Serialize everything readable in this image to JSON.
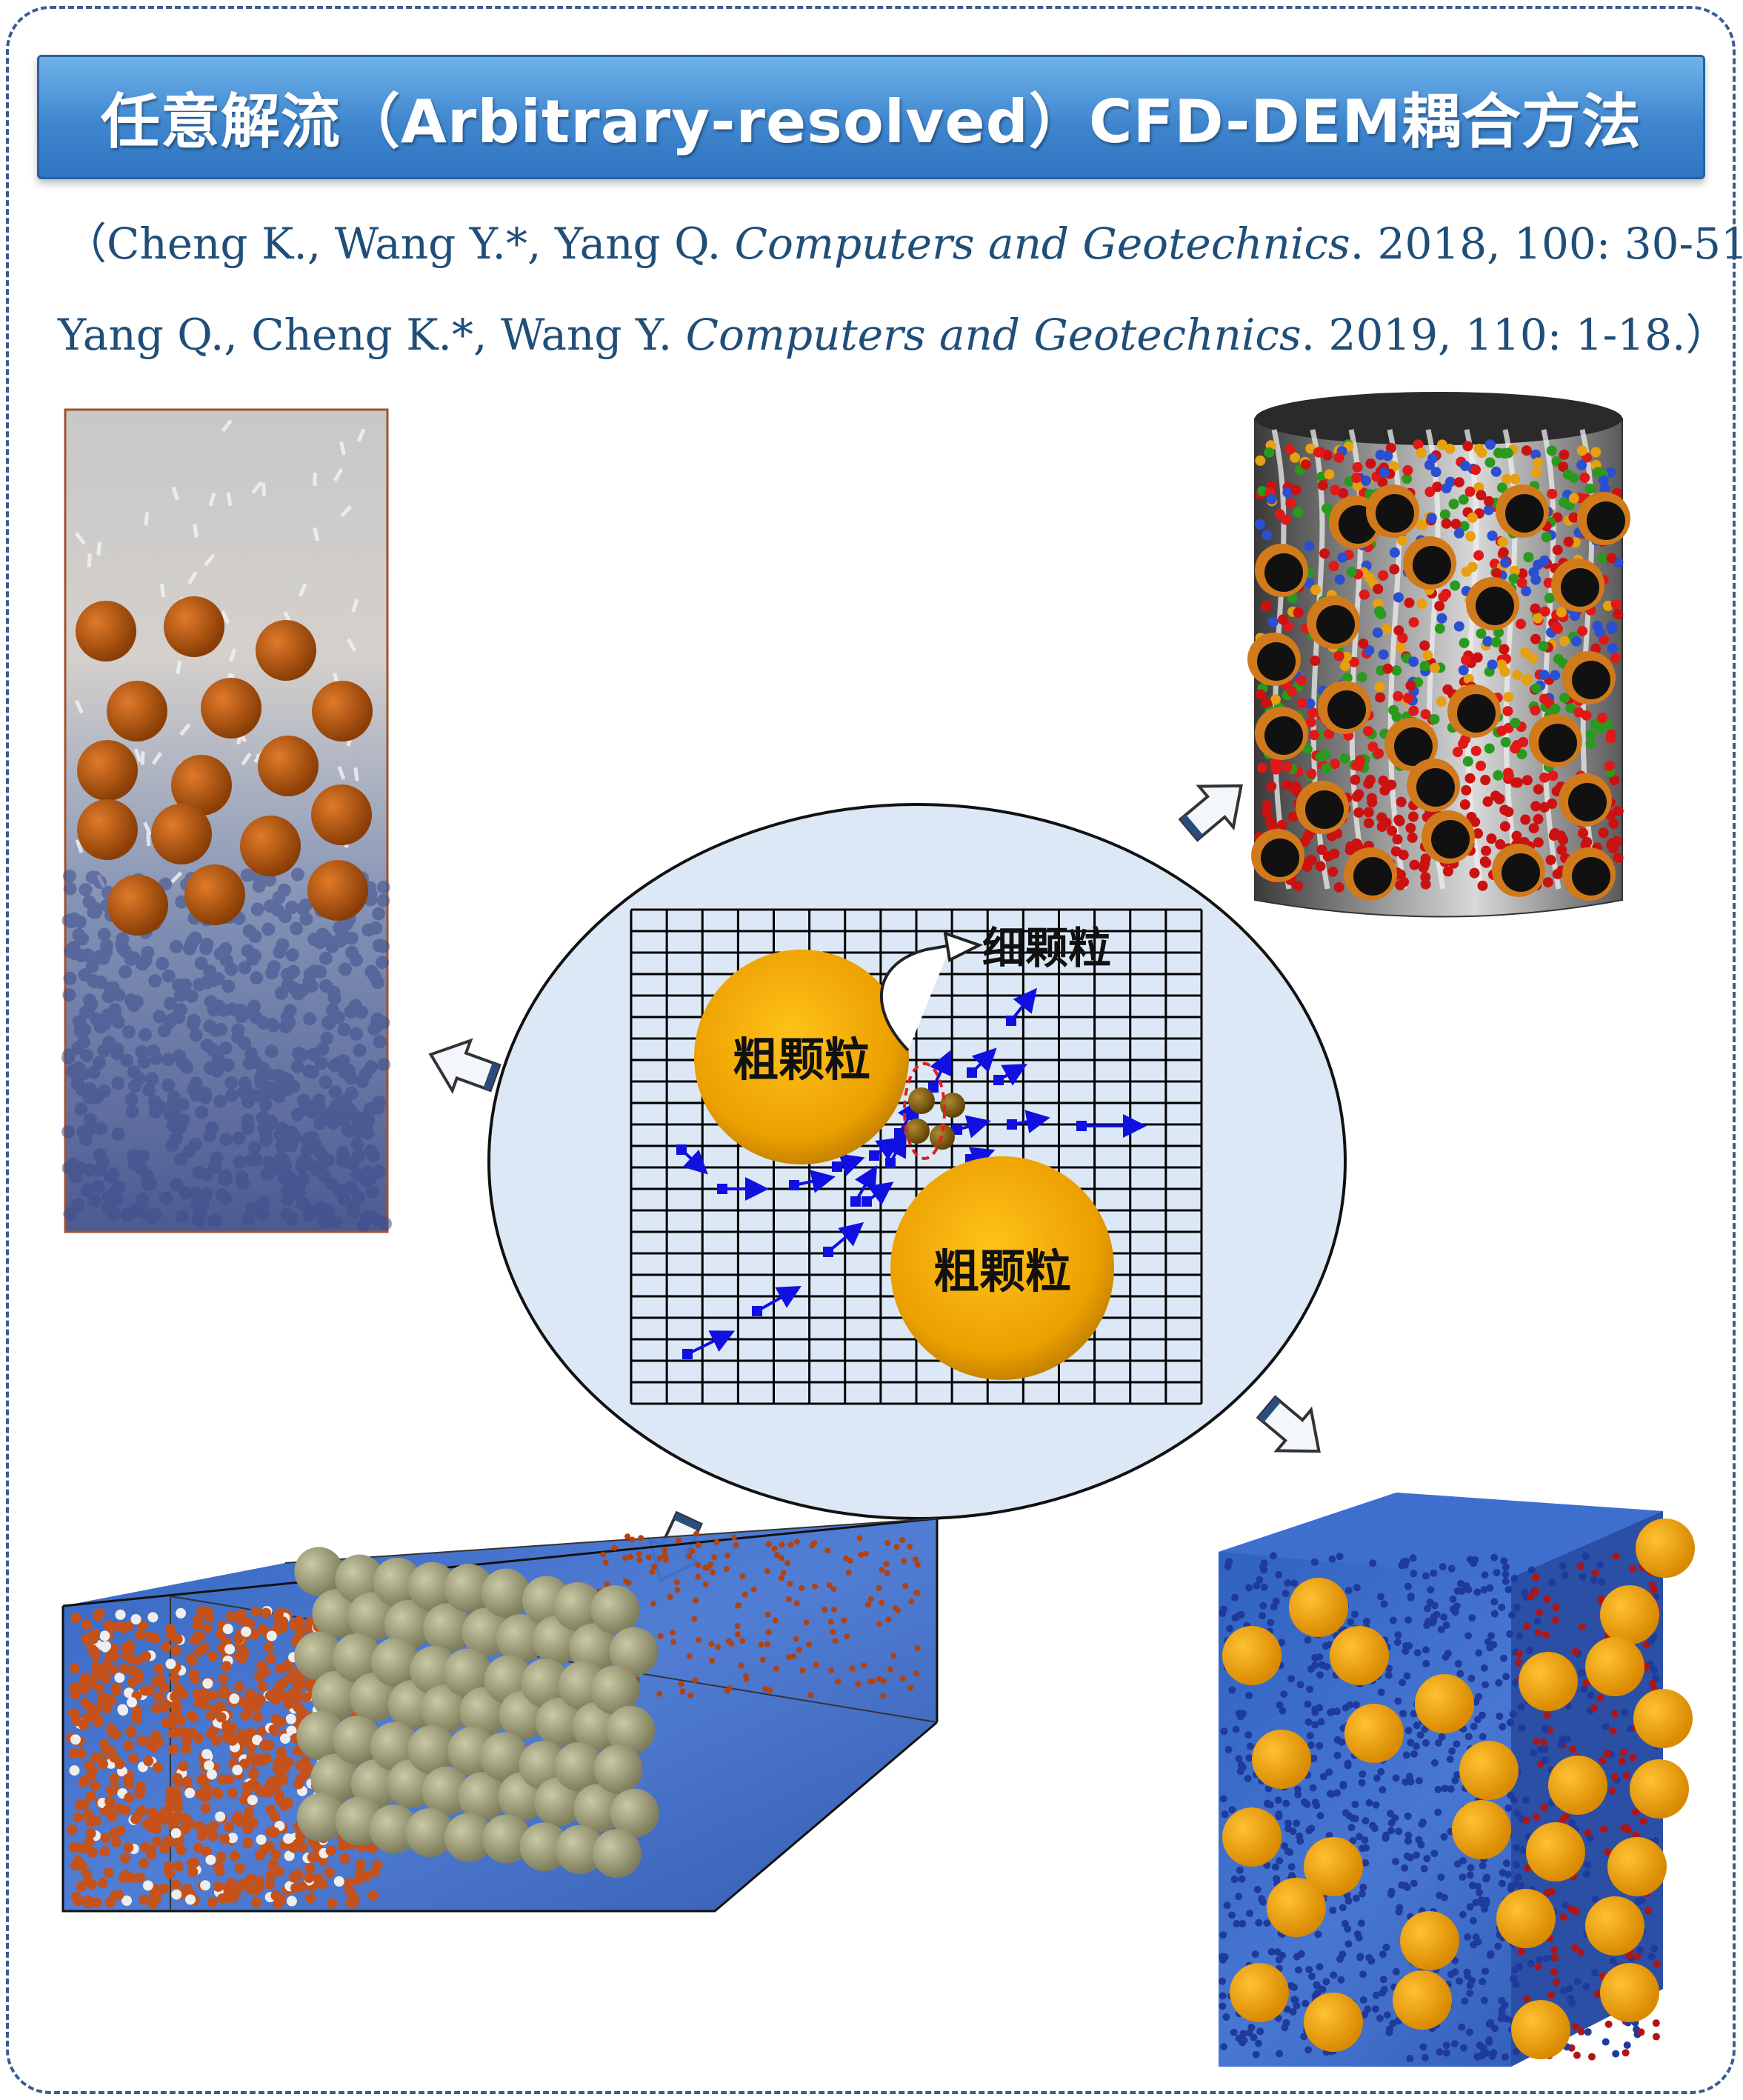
{
  "title": "任意解流（Arbitrary-resolved）CFD-DEM耦合方法",
  "references": [
    {
      "open": "（",
      "authors": "Cheng K., Wang Y.*, Yang Q.",
      "journal": "Computers and Geotechnics",
      "details": ". 2018, 100: 30-51;"
    },
    {
      "authors": "Yang Q., Cheng K.*, Wang Y.",
      "journal": "Computers and Geotechnics",
      "details": ". 2019, 110: 1-18.",
      "close": "）"
    }
  ],
  "diagram": {
    "coarse_label_1": "粗颗粒",
    "coarse_label_2": "粗颗粒",
    "fine_label": "细颗粒"
  },
  "colors": {
    "frame": "#3b5d8f",
    "banner": "#3f86cf",
    "reference_text": "#1f4e79",
    "circle_fill": "#dce8f5",
    "coarse_particle": "#f0a800",
    "fine_particle": "#8a6a10",
    "velocity_arrow": "#1010e0",
    "fine_highlight": "#e02020"
  }
}
